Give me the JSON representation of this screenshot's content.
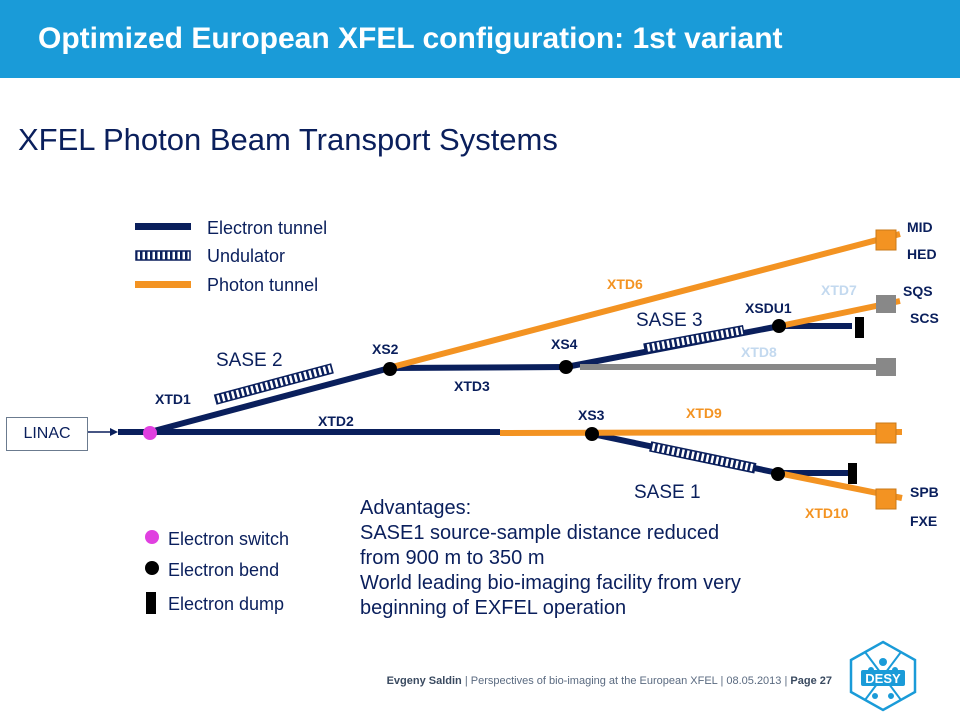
{
  "header": {
    "title": "Optimized European XFEL configuration: 1st variant"
  },
  "subtitle": "XFEL Photon Beam Transport Systems",
  "legend": {
    "electron_tunnel": "Electron tunnel",
    "undulator": "Undulator",
    "photon_tunnel": "Photon tunnel",
    "electron_switch": "Electron switch",
    "electron_bend": "Electron bend",
    "electron_dump": "Electron dump"
  },
  "labels": {
    "linac": "LINAC",
    "xtd1": "XTD1",
    "xtd2": "XTD2",
    "xtd3": "XTD3",
    "xtd6": "XTD6",
    "xtd7": "XTD7",
    "xtd8": "XTD8",
    "xtd9": "XTD9",
    "xtd10": "XTD10",
    "xs2": "XS2",
    "xs3": "XS3",
    "xs4": "XS4",
    "xsdu1": "XSDU1",
    "sase1": "SASE 1",
    "sase2": "SASE 2",
    "sase3": "SASE 3",
    "mid": "MID",
    "hed": "HED",
    "sqs": "SQS",
    "scs": "SCS",
    "spb": "SPB",
    "fxe": "FXE"
  },
  "advantages": {
    "heading": "Advantages:",
    "line1": "SASE1 source-sample distance reduced",
    "line2": "from 900 m to 350 m",
    "line3": "World leading bio-imaging facility from very",
    "line4": "beginning of EXFEL operation"
  },
  "footer": {
    "author": "Evgeny Saldin",
    "sep1": "|",
    "talk": "Perspectives of bio-imaging at the European XFEL",
    "sep2": "|",
    "date": "08.05.2013",
    "sep3": "|",
    "page_label": "Page 27"
  },
  "logo": {
    "text": "DESY"
  },
  "colors": {
    "header": "#1a9bd8",
    "electron": "#0a1f5c",
    "photon": "#f39322",
    "gray": "#888888",
    "switch": "#e040e0",
    "light_label": "#c3d9ef"
  }
}
